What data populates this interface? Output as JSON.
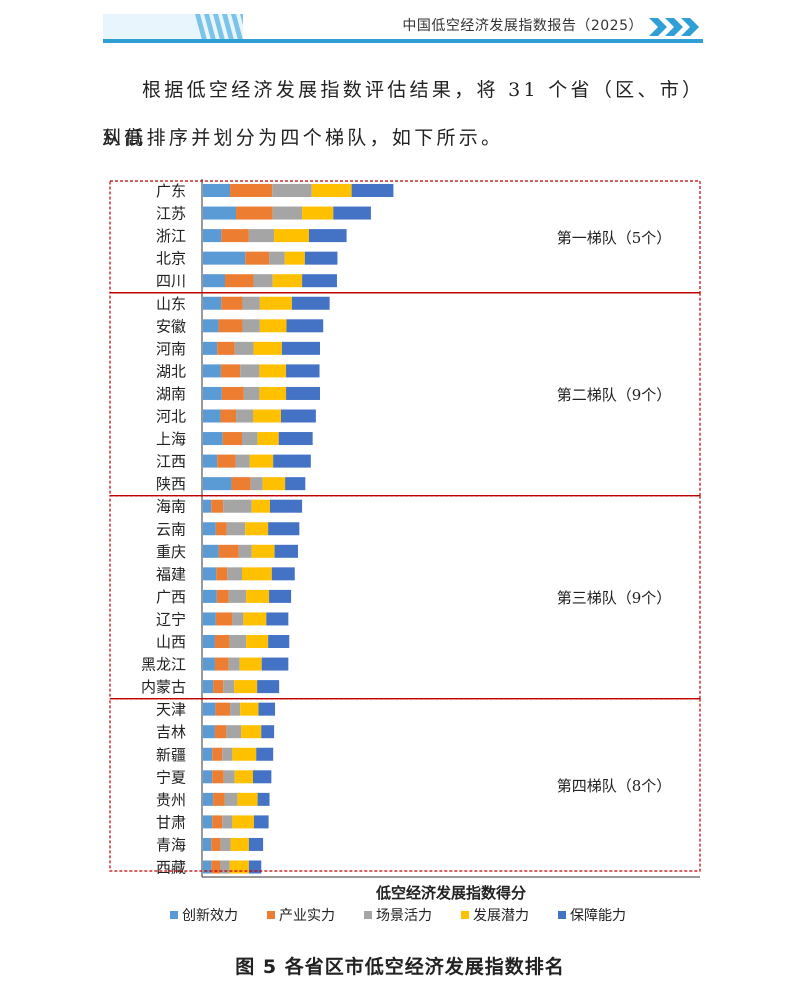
{
  "header": {
    "title": "中国低空经济发展指数报告（2025）",
    "accent_color": "#2f9fd6",
    "stripe_color": "#7cc3e8"
  },
  "body_text": {
    "line1": "根据低空经济发展指数评估结果，将 31 个省（区、市）从高",
    "line2": "到低排序并划分为四个梯队，如下所示。"
  },
  "chart_data": {
    "type": "bar",
    "orientation": "horizontal",
    "stacked": true,
    "xlabel": "低空经济发展指数得分",
    "ylabel": "",
    "axis_tick_labels_shown": false,
    "legend_placement": "bottom",
    "categories": [
      "广东",
      "江苏",
      "浙江",
      "北京",
      "四川",
      "山东",
      "安徽",
      "河南",
      "湖北",
      "湖南",
      "河北",
      "上海",
      "江西",
      "陕西",
      "海南",
      "云南",
      "重庆",
      "福建",
      "广西",
      "辽宁",
      "山西",
      "黑龙江",
      "内蒙古",
      "天津",
      "吉林",
      "新疆",
      "宁夏",
      "贵州",
      "甘肃",
      "青海",
      "西藏"
    ],
    "series": [
      {
        "name": "创新效力",
        "color": "#5b9bd5",
        "values": [
          59,
          72,
          40,
          92,
          48,
          40,
          34,
          31,
          39,
          41,
          38,
          43,
          31,
          62,
          18,
          28,
          34,
          29,
          30,
          28,
          26,
          26,
          22,
          27,
          26,
          20,
          20,
          22,
          20,
          18,
          18
        ]
      },
      {
        "name": "产业实力",
        "color": "#ed7d31",
        "values": [
          92,
          80,
          60,
          52,
          62,
          46,
          52,
          38,
          42,
          48,
          34,
          42,
          40,
          42,
          26,
          24,
          44,
          24,
          26,
          36,
          32,
          30,
          22,
          32,
          25,
          22,
          25,
          25,
          22,
          20,
          20
        ]
      },
      {
        "name": "场景活力",
        "color": "#a5a5a5",
        "values": [
          86,
          64,
          55,
          34,
          42,
          38,
          38,
          41,
          42,
          34,
          37,
          34,
          31,
          26,
          62,
          40,
          28,
          32,
          38,
          24,
          36,
          24,
          24,
          22,
          32,
          22,
          24,
          28,
          22,
          22,
          20
        ]
      },
      {
        "name": "发展潜力",
        "color": "#ffc000",
        "values": [
          87,
          68,
          76,
          44,
          64,
          70,
          58,
          62,
          58,
          58,
          61,
          46,
          51,
          49,
          40,
          50,
          50,
          65,
          50,
          50,
          48,
          48,
          50,
          40,
          44,
          52,
          40,
          44,
          47,
          40,
          42
        ]
      },
      {
        "name": "保障能力",
        "color": "#4472c4",
        "values": [
          91,
          82,
          82,
          71,
          76,
          82,
          80,
          83,
          73,
          74,
          76,
          74,
          82,
          44,
          70,
          68,
          51,
          50,
          48,
          48,
          46,
          58,
          48,
          36,
          28,
          37,
          40,
          26,
          32,
          31,
          27
        ]
      }
    ],
    "tiers": [
      {
        "label": "第一梯队（5个）",
        "start": 0,
        "end": 4
      },
      {
        "label": "第二梯队（9个）",
        "start": 5,
        "end": 13
      },
      {
        "label": "第三梯队（9个）",
        "start": 14,
        "end": 22
      },
      {
        "label": "第四梯队（8个）",
        "start": 23,
        "end": 30
      }
    ],
    "tier_border_color": "#c00000"
  },
  "caption": "图 5  各省区市低空经济发展指数排名"
}
